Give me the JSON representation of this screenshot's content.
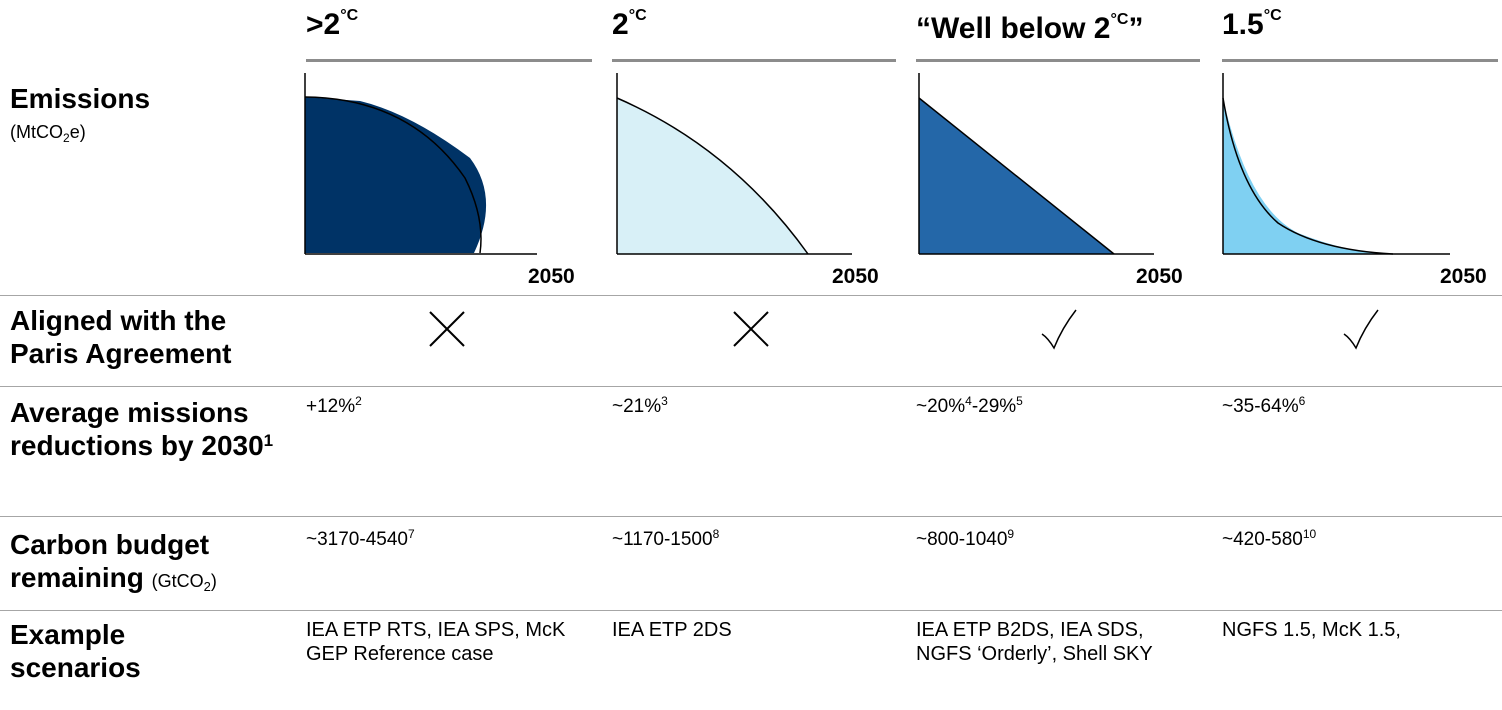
{
  "columns": [
    {
      "head_main": ">2",
      "head_sup": "°C",
      "year": "2050",
      "aligned_icon": "cross-icon",
      "reduction_main": "+12%",
      "reduction_sup": "2",
      "budget_main": "~3170-4540",
      "budget_sup": "7",
      "scenarios": "IEA ETP RTS, IEA SPS, McK GEP Reference case",
      "color": "#003366"
    },
    {
      "head_main": "2",
      "head_sup": "°C",
      "year": "2050",
      "aligned_icon": "cross-icon",
      "reduction_main": "~21%",
      "reduction_sup": "3",
      "budget_main": "~1170-1500",
      "budget_sup": "8",
      "scenarios": "IEA ETP 2DS",
      "color": "#d8f0f7"
    },
    {
      "head_main": "“Well below 2",
      "head_sup": "°C",
      "head_tail": "”",
      "year": "2050",
      "aligned_icon": "check-icon",
      "reduction_main": "~20%",
      "reduction_sup": "4",
      "reduction_mid": "-29%",
      "reduction_sup2": "5",
      "budget_main": "~800-1040",
      "budget_sup": "9",
      "scenarios": "IEA ETP B2DS, IEA SDS, NGFS ‘Orderly’, Shell SKY",
      "color": "#2467a8"
    },
    {
      "head_main": "1.5",
      "head_sup": "°C",
      "year": "2050",
      "aligned_icon": "check-icon",
      "reduction_main": "~35-64%",
      "reduction_sup": "6",
      "budget_main": "~420-580",
      "budget_sup": "10",
      "scenarios": "NGFS 1.5, McK 1.5,",
      "color": "#7fd0f2"
    }
  ],
  "rows": {
    "emissions_label": "Emissions",
    "emissions_unit_pre": "(MtCO",
    "emissions_unit_sub": "2",
    "emissions_unit_post": "e)",
    "aligned_label": "Aligned with the Paris Agreement",
    "reduction_label": "Average missions reductions by 2030",
    "reduction_sup": "1",
    "budget_label": "Carbon budget remaining",
    "budget_unit_pre": "(GtCO",
    "budget_unit_sub": "2",
    "budget_unit_post": ")",
    "scenarios_label": "Example scenarios"
  }
}
